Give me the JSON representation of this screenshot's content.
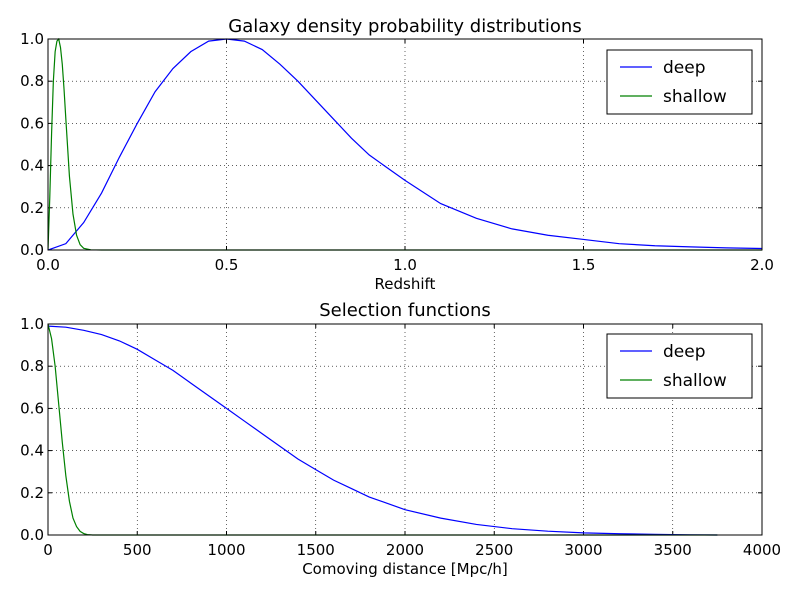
{
  "chart_data": [
    {
      "type": "line",
      "title": "Galaxy density probability distributions",
      "xlabel": "Redshift",
      "ylabel": "",
      "xlim": [
        0.0,
        2.0
      ],
      "ylim": [
        0.0,
        1.0
      ],
      "xticks": [
        "0.0",
        "0.5",
        "1.0",
        "1.5",
        "2.0"
      ],
      "yticks": [
        "0.0",
        "0.2",
        "0.4",
        "0.6",
        "0.8",
        "1.0"
      ],
      "grid": true,
      "legend_position": "top-right",
      "series": [
        {
          "name": "deep",
          "color": "#0000ff",
          "x": [
            0.0,
            0.05,
            0.1,
            0.15,
            0.2,
            0.25,
            0.3,
            0.35,
            0.4,
            0.45,
            0.5,
            0.55,
            0.6,
            0.65,
            0.7,
            0.75,
            0.8,
            0.85,
            0.9,
            0.95,
            1.0,
            1.1,
            1.2,
            1.3,
            1.4,
            1.5,
            1.6,
            1.7,
            1.8,
            1.9,
            2.0
          ],
          "y": [
            0.0,
            0.03,
            0.13,
            0.27,
            0.44,
            0.6,
            0.75,
            0.86,
            0.94,
            0.99,
            1.0,
            0.99,
            0.95,
            0.88,
            0.8,
            0.71,
            0.62,
            0.53,
            0.45,
            0.39,
            0.33,
            0.22,
            0.15,
            0.1,
            0.07,
            0.05,
            0.03,
            0.02,
            0.015,
            0.01,
            0.007
          ]
        },
        {
          "name": "shallow",
          "color": "#008000",
          "x": [
            0.0,
            0.005,
            0.01,
            0.015,
            0.02,
            0.025,
            0.03,
            0.035,
            0.04,
            0.045,
            0.05,
            0.06,
            0.07,
            0.08,
            0.09,
            0.1,
            0.12,
            0.15,
            0.2,
            0.5,
            1.0,
            1.5,
            2.0
          ],
          "y": [
            0.0,
            0.25,
            0.55,
            0.8,
            0.94,
            0.99,
            1.0,
            0.96,
            0.88,
            0.76,
            0.62,
            0.35,
            0.17,
            0.07,
            0.025,
            0.008,
            0.001,
            0.0,
            0.0,
            0.0,
            0.0,
            0.0,
            0.0
          ]
        }
      ]
    },
    {
      "type": "line",
      "title": "Selection functions",
      "xlabel": "Comoving distance [Mpc/h]",
      "ylabel": "",
      "xlim": [
        0,
        4000
      ],
      "ylim": [
        0.0,
        1.0
      ],
      "xticks": [
        "0",
        "500",
        "1000",
        "1500",
        "2000",
        "2500",
        "3000",
        "3500",
        "4000"
      ],
      "yticks": [
        "0.0",
        "0.2",
        "0.4",
        "0.6",
        "0.8",
        "1.0"
      ],
      "grid": true,
      "legend_position": "top-right",
      "series": [
        {
          "name": "deep",
          "color": "#0000ff",
          "x": [
            0,
            100,
            200,
            300,
            400,
            500,
            600,
            700,
            800,
            900,
            1000,
            1100,
            1200,
            1300,
            1400,
            1500,
            1600,
            1700,
            1800,
            1900,
            2000,
            2200,
            2400,
            2600,
            2800,
            3000,
            3200,
            3400,
            3600,
            3750
          ],
          "y": [
            0.99,
            0.985,
            0.97,
            0.95,
            0.92,
            0.88,
            0.83,
            0.78,
            0.72,
            0.66,
            0.6,
            0.54,
            0.48,
            0.42,
            0.36,
            0.31,
            0.26,
            0.22,
            0.18,
            0.15,
            0.12,
            0.08,
            0.05,
            0.03,
            0.018,
            0.01,
            0.006,
            0.003,
            0.001,
            0.0
          ]
        },
        {
          "name": "shallow",
          "color": "#008000",
          "x": [
            0,
            20,
            40,
            60,
            80,
            100,
            120,
            140,
            160,
            180,
            200,
            220,
            250,
            300,
            400,
            1000,
            2000,
            3000,
            3750
          ],
          "y": [
            1.0,
            0.93,
            0.8,
            0.62,
            0.44,
            0.28,
            0.16,
            0.08,
            0.04,
            0.017,
            0.007,
            0.002,
            0.0,
            0.0,
            0.0,
            0.0,
            0.0,
            0.0,
            0.0
          ]
        }
      ]
    }
  ]
}
